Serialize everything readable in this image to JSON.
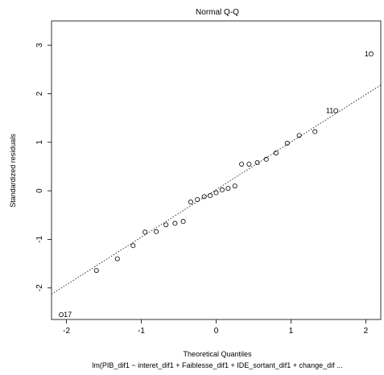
{
  "chart_data": {
    "type": "scatter",
    "title": "Normal Q-Q",
    "xlabel": "Theoretical Quantiles",
    "ylabel": "Standardized residuals",
    "subtitle": "lm(PIB_dif1 ~ interet_dif1 + Faiblesse_dif1 + IDE_sortant_dif1 + change_dif ...",
    "xlim": [
      -2.2,
      2.2
    ],
    "ylim": [
      -2.65,
      3.5
    ],
    "xticks": [
      "-2",
      "-1",
      "0",
      "1",
      "2"
    ],
    "yticks": [
      "-2",
      "-1",
      "0",
      "1",
      "2",
      "3"
    ],
    "reference_line": {
      "style": "dotted",
      "x": [
        -2.2,
        2.2
      ],
      "y": [
        -2.13,
        2.18
      ]
    },
    "points": [
      {
        "x": -2.07,
        "y": -2.55
      },
      {
        "x": -1.6,
        "y": -1.64
      },
      {
        "x": -1.32,
        "y": -1.4
      },
      {
        "x": -1.11,
        "y": -1.13
      },
      {
        "x": -0.95,
        "y": -0.85
      },
      {
        "x": -0.8,
        "y": -0.84
      },
      {
        "x": -0.67,
        "y": -0.7
      },
      {
        "x": -0.55,
        "y": -0.67
      },
      {
        "x": -0.44,
        "y": -0.63
      },
      {
        "x": -0.34,
        "y": -0.23
      },
      {
        "x": -0.25,
        "y": -0.18
      },
      {
        "x": -0.16,
        "y": -0.12
      },
      {
        "x": -0.08,
        "y": -0.1
      },
      {
        "x": 0.0,
        "y": -0.04
      },
      {
        "x": 0.08,
        "y": 0.02
      },
      {
        "x": 0.16,
        "y": 0.05
      },
      {
        "x": 0.25,
        "y": 0.1
      },
      {
        "x": 0.34,
        "y": 0.55
      },
      {
        "x": 0.44,
        "y": 0.55
      },
      {
        "x": 0.55,
        "y": 0.58
      },
      {
        "x": 0.67,
        "y": 0.65
      },
      {
        "x": 0.8,
        "y": 0.78
      },
      {
        "x": 0.95,
        "y": 0.98
      },
      {
        "x": 1.11,
        "y": 1.14
      },
      {
        "x": 1.32,
        "y": 1.22
      },
      {
        "x": 1.6,
        "y": 1.65
      },
      {
        "x": 2.07,
        "y": 2.82
      }
    ],
    "point_labels": [
      {
        "text": "17",
        "x": -2.07,
        "y": -2.55,
        "side": "right"
      },
      {
        "text": "11",
        "x": 1.6,
        "y": 1.65,
        "side": "left"
      },
      {
        "text": "1",
        "x": 2.07,
        "y": 2.82,
        "side": "left"
      }
    ]
  }
}
